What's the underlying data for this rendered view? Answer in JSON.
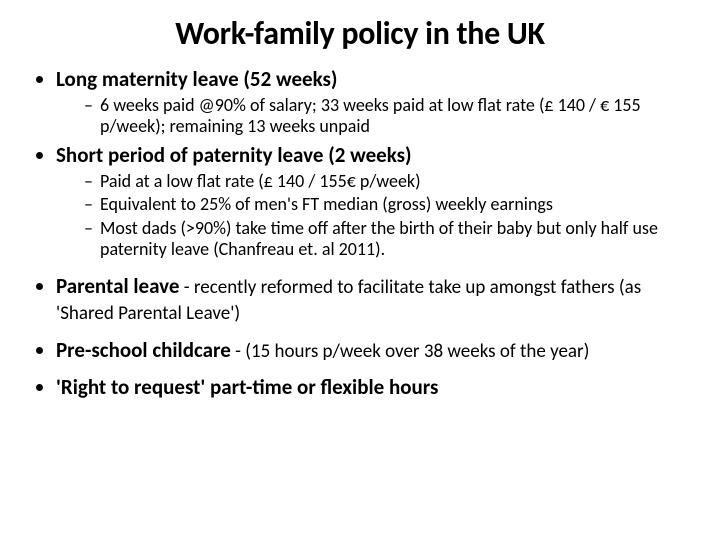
{
  "colors": {
    "background": "#ffffff",
    "text": "#000000"
  },
  "typography": {
    "family": "Calibri",
    "title_size_pt": 32,
    "title_weight": 700,
    "level1_size_pt": 21,
    "level1_lead_weight": 700,
    "level1_tail_size_pt": 19,
    "level2_size_pt": 18
  },
  "title": "Work-family policy in the UK",
  "bullets": [
    {
      "lead": "Long maternity leave (52 weeks)",
      "tail": "",
      "sub": [
        "6 weeks paid @90% of salary; 33 weeks paid at low flat rate (£ 140 / € 155 p/week); remaining 13 weeks unpaid"
      ]
    },
    {
      "lead": "Short period of paternity leave (2 weeks)",
      "tail": "",
      "sub": [
        "Paid at a low flat rate (£ 140 / 155€ p/week)",
        "Equivalent to 25% of men's FT median (gross) weekly earnings",
        "Most dads (>90%) take time off after the birth of their baby but only half use paternity leave (Chanfreau et. al 2011)."
      ]
    },
    {
      "lead": "Parental leave",
      "tail": " - recently reformed to facilitate take up amongst fathers (as 'Shared Parental Leave')",
      "sub": []
    },
    {
      "lead": "Pre-school childcare",
      "tail": " - (15 hours p/week over 38 weeks of the year)",
      "sub": []
    },
    {
      "lead": "'Right to request' part-time or flexible hours",
      "tail": "",
      "sub": []
    }
  ]
}
